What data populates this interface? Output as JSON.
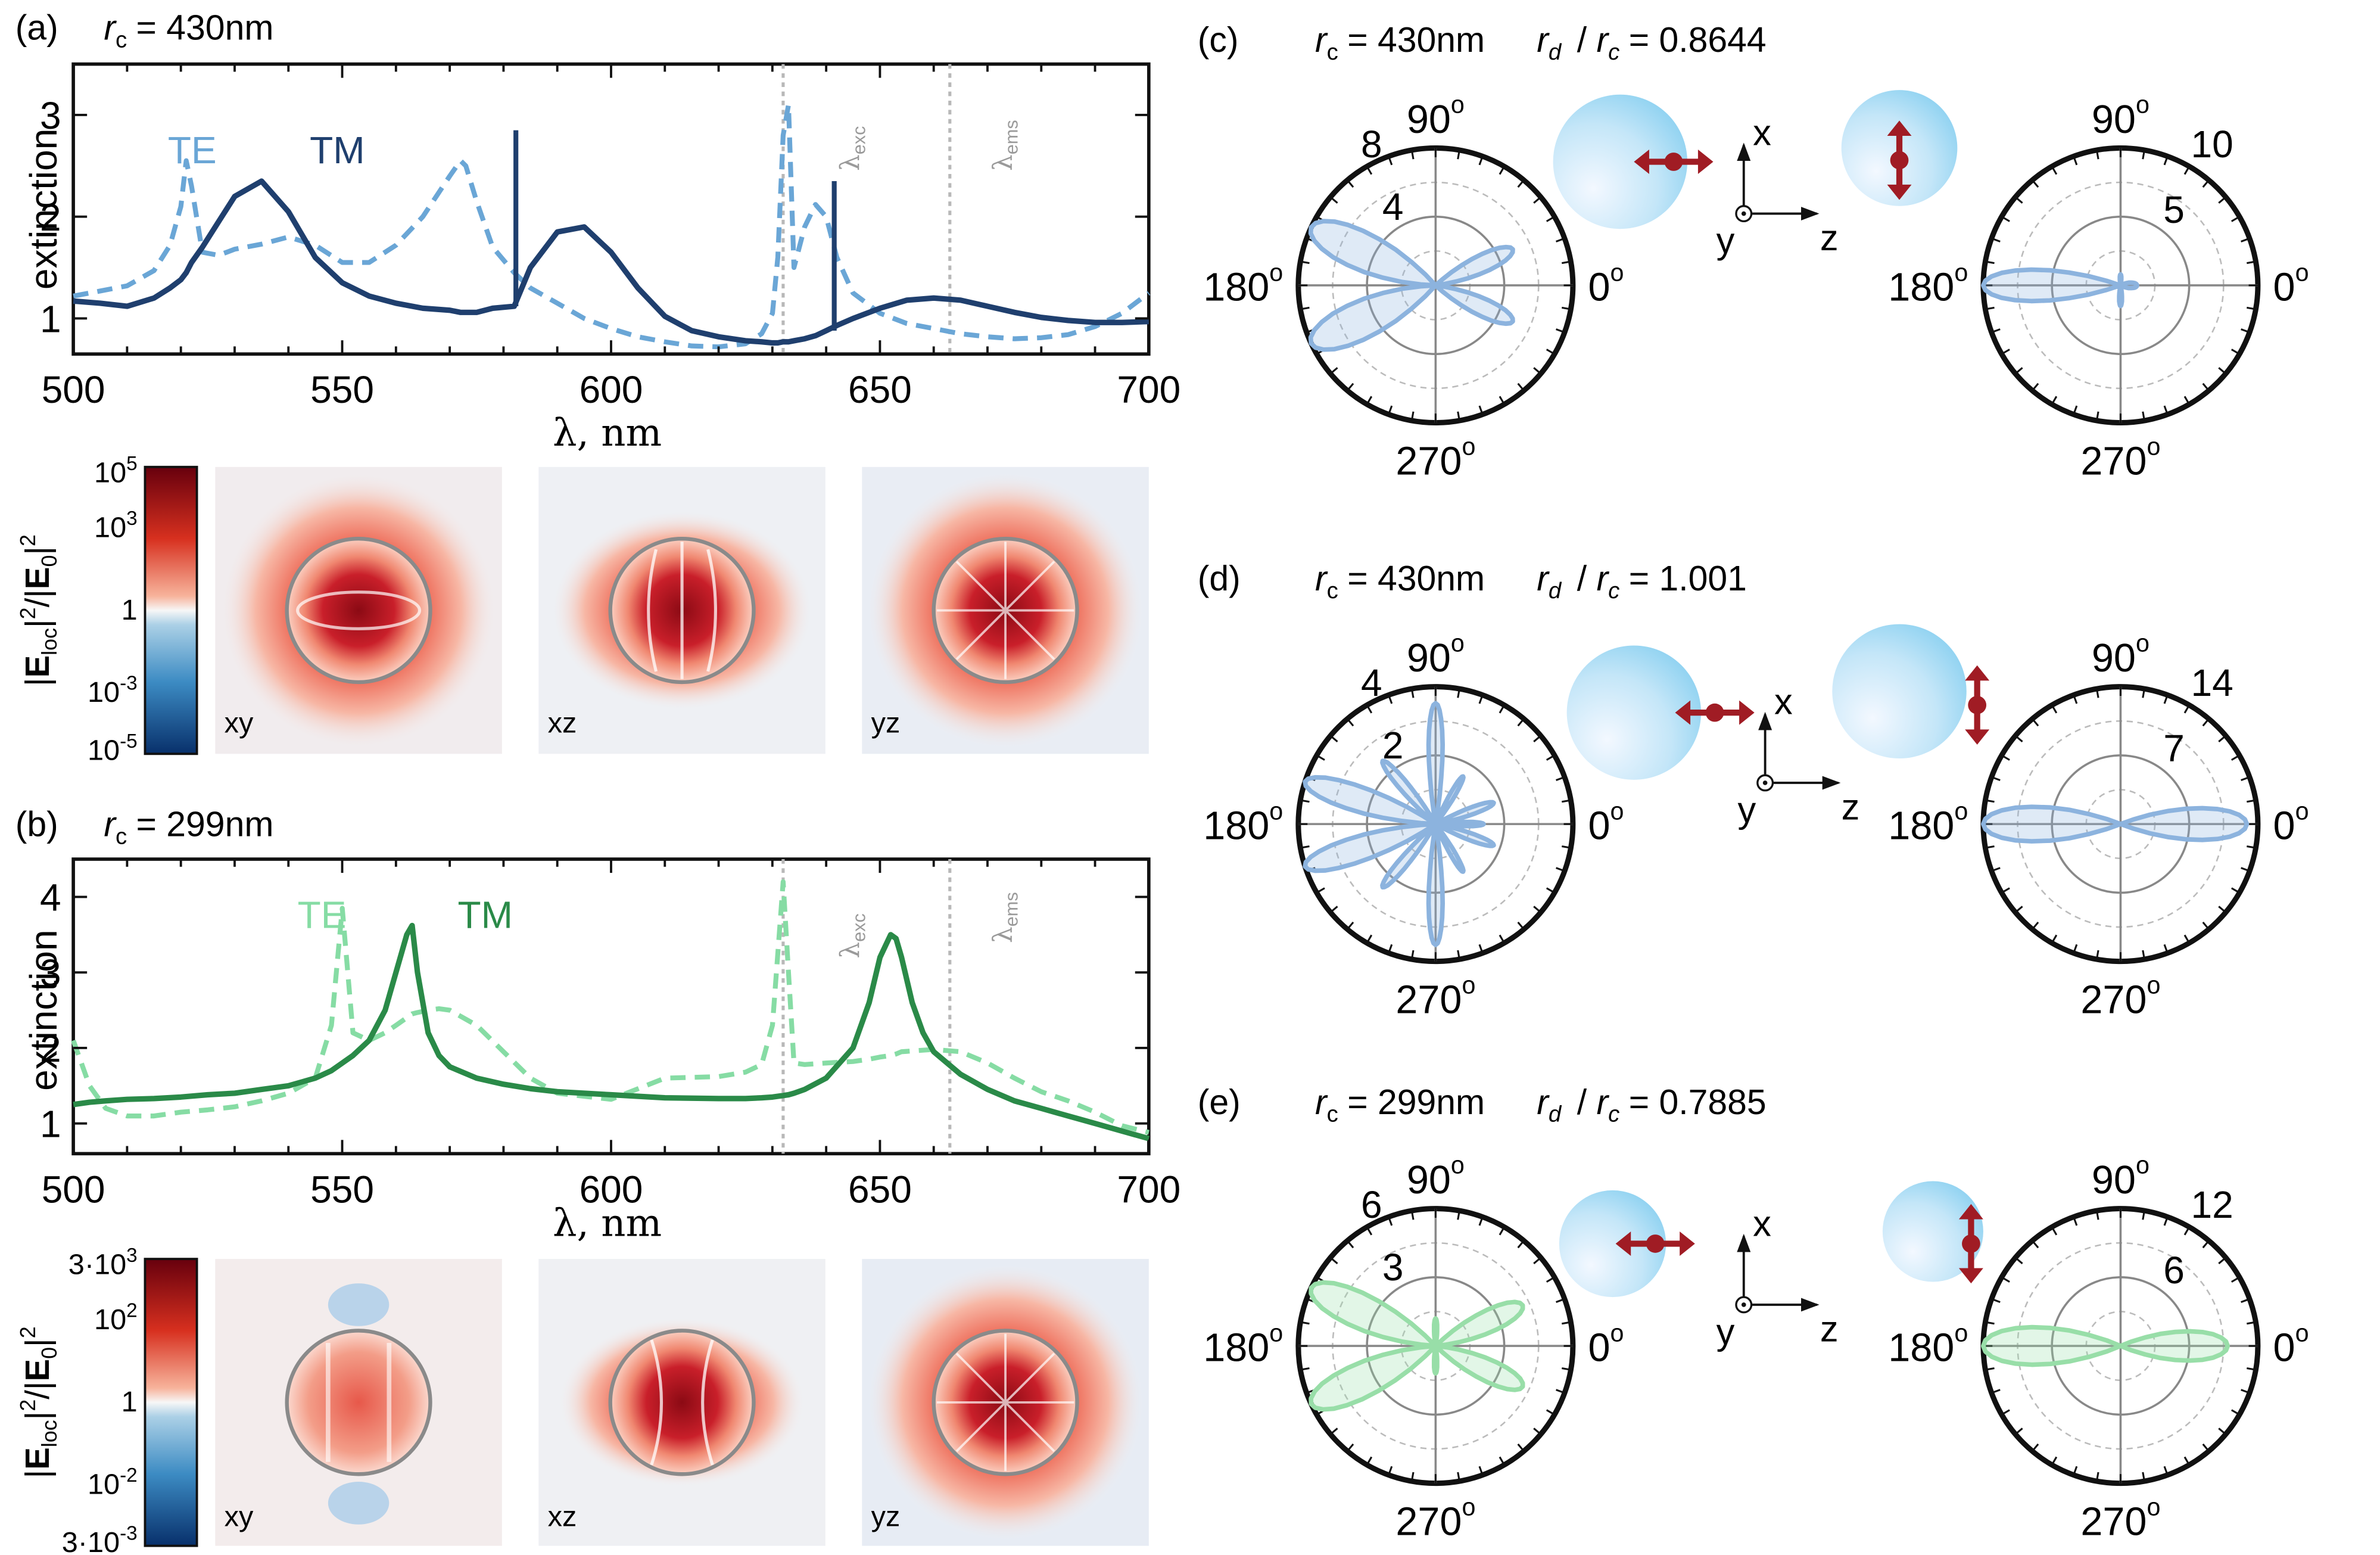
{
  "panels": {
    "a": {
      "label": "(a)",
      "rc_name": "r",
      "rc_sub": "c",
      "rc_value": "= 430nm",
      "te_label": "TE",
      "tm_label": "TM",
      "xlabel": "λ, nm",
      "ylabel": "extinction",
      "lambda_exc": "λ",
      "lambda_exc_sub": "exc",
      "lambda_ems": "λ",
      "lambda_ems_sub": "ems",
      "xticks": [
        "500",
        "550",
        "600",
        "650",
        "700"
      ],
      "yticks": [
        "1",
        "2",
        "3"
      ],
      "colorbar_ticks": [
        "10^5",
        "10^3",
        "1",
        "10^-3",
        "10^-5"
      ],
      "colorbar_label": "|E_loc|^2/|E_0|^2",
      "maps": [
        "xy",
        "xz",
        "yz"
      ]
    },
    "b": {
      "label": "(b)",
      "rc_name": "r",
      "rc_sub": "c",
      "rc_value": "= 299nm",
      "te_label": "TE",
      "tm_label": "TM",
      "xlabel": "λ, nm",
      "ylabel": "extinction",
      "lambda_exc": "λ",
      "lambda_exc_sub": "exc",
      "lambda_ems": "λ",
      "lambda_ems_sub": "ems",
      "xticks": [
        "500",
        "550",
        "600",
        "650",
        "700"
      ],
      "yticks": [
        "1",
        "2",
        "3",
        "4"
      ],
      "colorbar_ticks": [
        "3·10^3",
        "10^2",
        "1",
        "10^-2",
        "3·10^-3"
      ],
      "colorbar_label": "|E_loc|^2/|E_0|^2",
      "maps": [
        "xy",
        "xz",
        "yz"
      ]
    },
    "c": {
      "label": "(c)",
      "rc_value": "= 430nm",
      "ratio_value": "= 0.8644",
      "left_rings": [
        "8",
        "4"
      ],
      "right_rings": [
        "10",
        "5"
      ]
    },
    "d": {
      "label": "(d)",
      "rc_value": "= 430nm",
      "ratio_value": "= 1.001",
      "left_rings": [
        "4",
        "2"
      ],
      "right_rings": [
        "14",
        "7"
      ]
    },
    "e": {
      "label": "(e)",
      "rc_value": "= 299nm",
      "ratio_value": "= 0.7885",
      "left_rings": [
        "6",
        "3"
      ],
      "right_rings": [
        "12",
        "6"
      ]
    }
  },
  "angle_labels": [
    "90",
    "180",
    "0",
    "270"
  ],
  "axes_labels": {
    "x": "x",
    "y": "y",
    "z": "z"
  },
  "colors": {
    "te_a": "#6aa6d6",
    "tm_a": "#1f3f6e",
    "te_b": "#86dca4",
    "tm_b": "#2a8a48",
    "polar_blue": "#8cb3de",
    "polar_green": "#98dea8",
    "sphere": "#a9dcf4",
    "dipole": "#a01c24",
    "refline": "#b8b8b8"
  },
  "chart_data": [
    {
      "type": "line",
      "panel": "a",
      "title": "r_c = 430nm",
      "xlabel": "λ, nm",
      "ylabel": "extinction",
      "xlim": [
        500,
        700
      ],
      "ylim": [
        0.65,
        3.5
      ],
      "x": [
        500,
        505,
        510,
        515,
        518,
        520,
        521,
        522,
        524,
        527,
        530,
        535,
        540,
        545,
        550,
        555,
        560,
        565,
        570,
        572,
        573,
        575,
        578,
        582,
        585,
        590,
        595,
        600,
        605,
        610,
        615,
        620,
        625,
        628,
        630,
        631,
        632,
        633,
        634,
        636,
        638,
        640,
        642,
        645,
        650,
        655,
        660,
        665,
        670,
        675,
        680,
        685,
        690,
        695,
        700
      ],
      "series": [
        {
          "name": "TE",
          "style": "dashed",
          "values": [
            1.22,
            1.27,
            1.32,
            1.47,
            1.72,
            2.1,
            2.55,
            2.3,
            1.65,
            1.62,
            1.68,
            1.73,
            1.8,
            1.72,
            1.55,
            1.55,
            1.72,
            2.0,
            2.4,
            2.55,
            2.5,
            2.15,
            1.7,
            1.45,
            1.3,
            1.15,
            1.0,
            0.9,
            0.82,
            0.77,
            0.73,
            0.72,
            0.75,
            0.85,
            1.05,
            1.6,
            2.8,
            3.1,
            1.5,
            1.9,
            2.12,
            2.0,
            1.6,
            1.25,
            1.05,
            0.95,
            0.9,
            0.85,
            0.82,
            0.8,
            0.81,
            0.84,
            0.92,
            1.05,
            1.25
          ]
        },
        {
          "name": "TM",
          "style": "solid",
          "values": [
            1.17,
            1.15,
            1.12,
            1.2,
            1.3,
            1.38,
            1.45,
            1.55,
            1.7,
            1.95,
            2.2,
            2.35,
            2.05,
            1.6,
            1.35,
            1.22,
            1.15,
            1.1,
            1.08,
            1.06,
            1.06,
            1.06,
            1.1,
            1.12,
            1.5,
            1.85,
            1.9,
            1.65,
            1.3,
            1.02,
            0.88,
            0.82,
            0.78,
            0.77,
            0.76,
            0.76,
            0.77,
            0.77,
            0.78,
            0.8,
            0.83,
            0.88,
            0.93,
            1.0,
            1.1,
            1.18,
            1.2,
            1.18,
            1.12,
            1.06,
            1.01,
            0.98,
            0.96,
            0.96,
            0.97
          ]
        }
      ],
      "spikes": [
        {
          "series": "TM",
          "x": 582.3,
          "peak": 2.85,
          "base": 1.12
        },
        {
          "series": "TM",
          "x": 641.5,
          "peak": 2.35,
          "base": 0.88
        }
      ],
      "vlines": [
        {
          "label": "λexc",
          "x": 632
        },
        {
          "label": "λems",
          "x": 663
        }
      ]
    },
    {
      "type": "line",
      "panel": "b",
      "title": "r_c = 299nm",
      "xlabel": "λ, nm",
      "ylabel": "extinction",
      "xlim": [
        500,
        700
      ],
      "ylim": [
        0.6,
        4.5
      ],
      "x": [
        500,
        503,
        506,
        510,
        515,
        520,
        525,
        530,
        535,
        540,
        545,
        548,
        550,
        552,
        555,
        558,
        560,
        562,
        563,
        564,
        566,
        568,
        570,
        575,
        580,
        585,
        590,
        600,
        610,
        620,
        625,
        628,
        630,
        632,
        633,
        634,
        636,
        640,
        645,
        648,
        650,
        652,
        653,
        654,
        656,
        658,
        660,
        665,
        670,
        675,
        680,
        685,
        690,
        695,
        700
      ],
      "series": [
        {
          "name": "TE",
          "style": "dashed",
          "values": [
            2.1,
            1.5,
            1.2,
            1.1,
            1.1,
            1.15,
            1.18,
            1.22,
            1.3,
            1.4,
            1.6,
            2.3,
            3.85,
            2.2,
            2.1,
            2.2,
            2.3,
            2.4,
            2.45,
            2.47,
            2.5,
            2.52,
            2.5,
            2.3,
            1.95,
            1.6,
            1.4,
            1.32,
            1.6,
            1.62,
            1.68,
            1.78,
            2.3,
            4.2,
            3.0,
            1.8,
            1.78,
            1.8,
            1.82,
            1.85,
            1.88,
            1.9,
            1.92,
            1.95,
            1.96,
            1.97,
            1.98,
            1.95,
            1.8,
            1.6,
            1.42,
            1.3,
            1.15,
            0.97,
            0.88
          ]
        },
        {
          "name": "TM",
          "style": "solid",
          "values": [
            1.25,
            1.28,
            1.3,
            1.32,
            1.33,
            1.35,
            1.38,
            1.4,
            1.45,
            1.5,
            1.6,
            1.7,
            1.8,
            1.9,
            2.1,
            2.5,
            3.0,
            3.5,
            3.62,
            3.0,
            2.2,
            1.9,
            1.75,
            1.6,
            1.52,
            1.46,
            1.42,
            1.38,
            1.34,
            1.33,
            1.33,
            1.34,
            1.35,
            1.37,
            1.38,
            1.4,
            1.45,
            1.6,
            2.0,
            2.6,
            3.2,
            3.5,
            3.45,
            3.2,
            2.6,
            2.2,
            1.95,
            1.65,
            1.45,
            1.3,
            1.2,
            1.1,
            1.0,
            0.9,
            0.8
          ]
        }
      ],
      "vlines": [
        {
          "label": "λexc",
          "x": 632
        },
        {
          "label": "λems",
          "x": 663
        }
      ]
    }
  ]
}
